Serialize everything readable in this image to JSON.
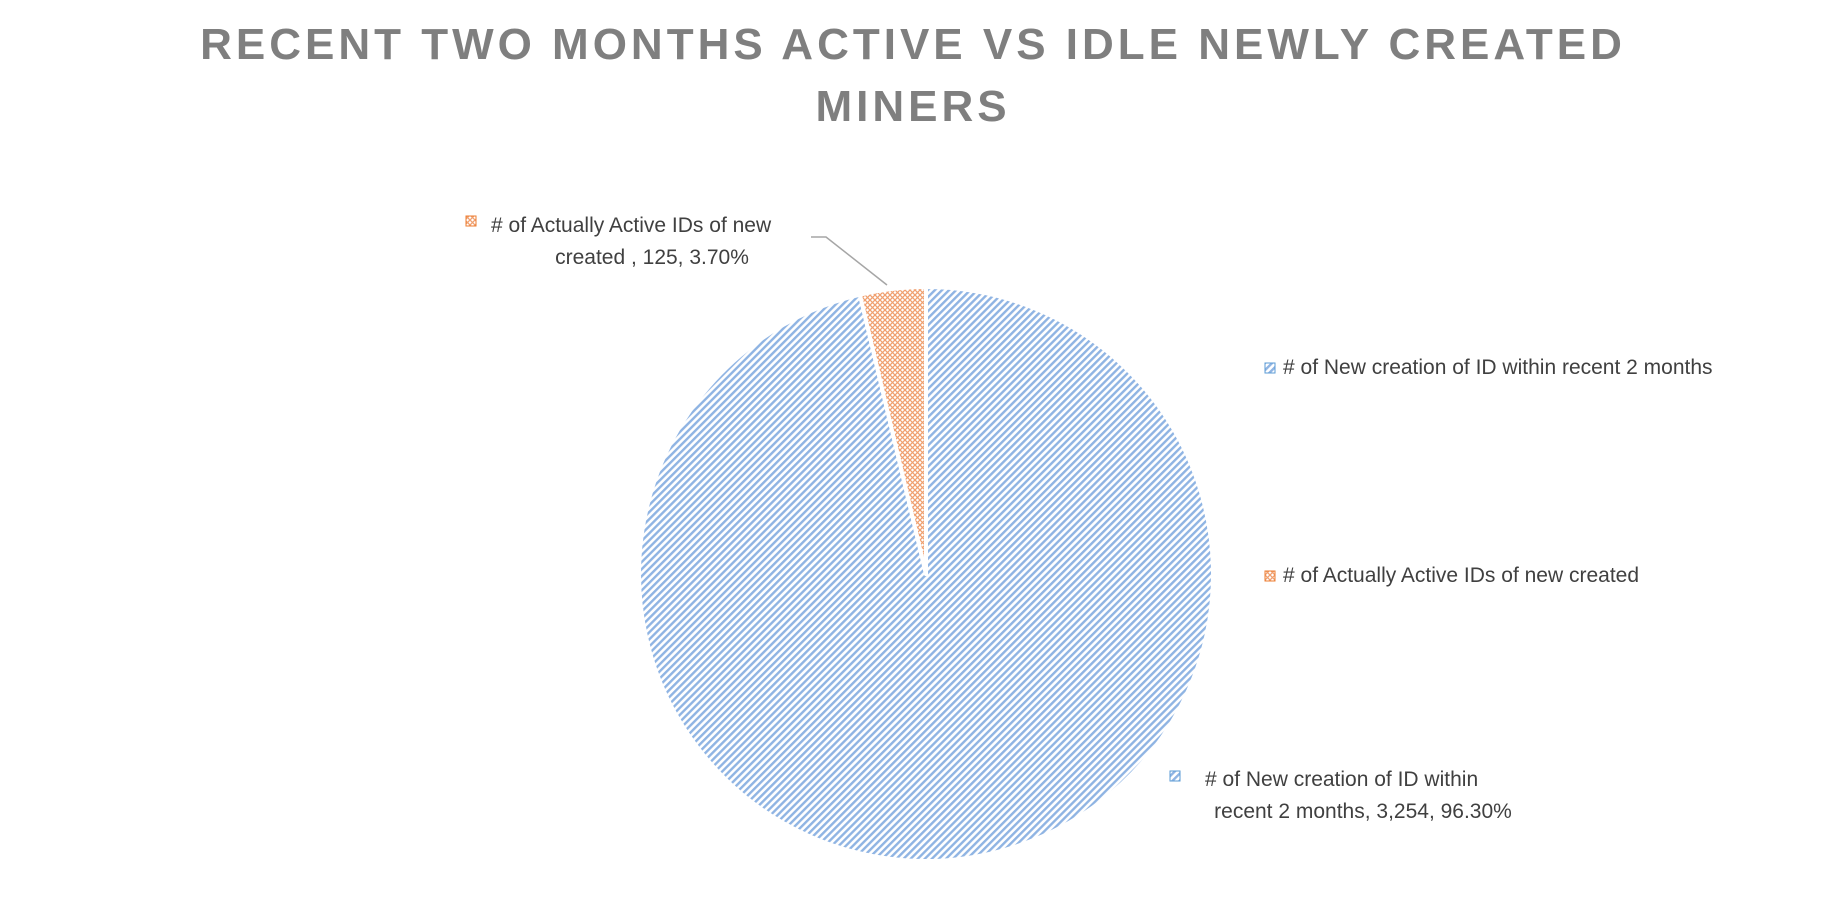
{
  "chart_data": {
    "type": "pie",
    "title_lines": [
      "RECENT TWO MONTHS ACTIVE VS IDLE NEWLY CREATED",
      "MINERS"
    ],
    "series": [
      {
        "name": "# of New creation of ID within recent 2 months",
        "value": 3254,
        "percent": 96.3,
        "color": "#5b9bd5",
        "label_lines": [
          "# of New creation of ID within",
          "recent 2 months, 3,254, 96.30%"
        ]
      },
      {
        "name": "# of Actually Active IDs of new created",
        "value": 125,
        "percent": 3.7,
        "color": "#ed7d31",
        "label_lines": [
          "# of Actually Active IDs of new",
          "created , 125, 3.70%"
        ]
      }
    ],
    "legend": {
      "position": "right",
      "entries": [
        "# of New creation of ID within recent 2 months",
        "# of Actually Active IDs of new created"
      ]
    }
  }
}
